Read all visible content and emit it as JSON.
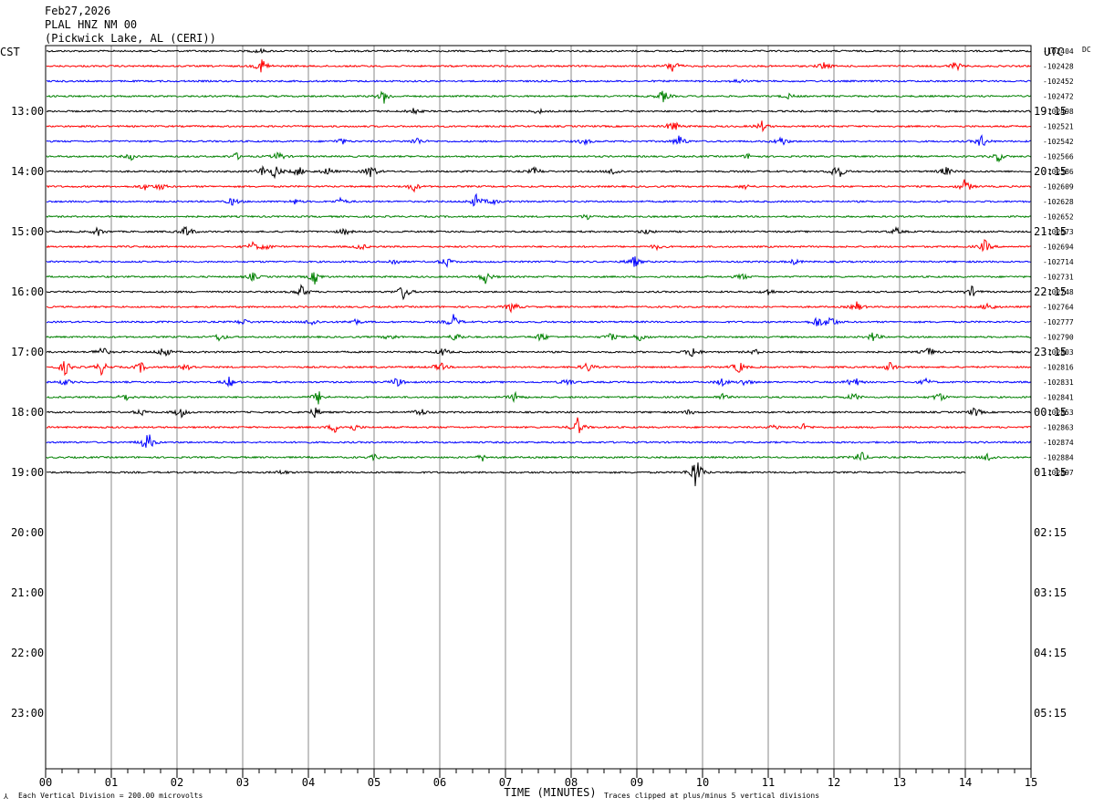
{
  "header": {
    "date": "Feb27,2026",
    "station": "PLAL HNZ NM 00",
    "location": "(Pickwick Lake, AL (CERI))"
  },
  "footer": {
    "scale_note": "Each Vertical Division =  200.00 microvolts",
    "clip_note": "Traces clipped at plus/minus 5 vertical divisions"
  },
  "chart_data": {
    "type": "line",
    "title": "",
    "xlabel": "TIME (MINUTES)",
    "x_ticks": [
      "00",
      "01",
      "02",
      "03",
      "04",
      "05",
      "06",
      "07",
      "08",
      "09",
      "10",
      "11",
      "12",
      "13",
      "14",
      "15"
    ],
    "xlim": [
      0,
      15
    ],
    "left_axis_label": "CST",
    "right_axis_label": "UTC",
    "dc_label": "DC",
    "left_hour_labels": [
      "13:00",
      "14:00",
      "15:00",
      "16:00",
      "17:00",
      "18:00",
      "19:00",
      "20:00",
      "21:00",
      "22:00",
      "23:00"
    ],
    "right_hour_labels": [
      "19:15",
      "20:15",
      "21:15",
      "22:15",
      "23:15",
      "00:15",
      "01:15",
      "02:15",
      "03:15",
      "04:15",
      "05:15"
    ],
    "trace_colors": [
      "#000000",
      "#ff0000",
      "#0000ff",
      "#008000"
    ],
    "grid": "vertical lines at each minute",
    "traces": [
      {
        "dc": "-102404",
        "events": [
          [
            3.25,
            3
          ]
        ]
      },
      {
        "dc": "-102428",
        "events": [
          [
            3.3,
            10
          ],
          [
            9.55,
            9
          ],
          [
            11.85,
            5
          ],
          [
            13.85,
            6
          ]
        ]
      },
      {
        "dc": "-102452",
        "events": [
          [
            10.55,
            3
          ]
        ]
      },
      {
        "dc": "-102472",
        "events": [
          [
            5.15,
            8
          ],
          [
            9.4,
            7
          ],
          [
            11.3,
            3
          ]
        ]
      },
      {
        "dc": "-102498",
        "events": [
          [
            5.6,
            4
          ],
          [
            7.5,
            3
          ]
        ]
      },
      {
        "dc": "-102521",
        "events": [
          [
            9.55,
            8
          ],
          [
            10.9,
            6
          ]
        ]
      },
      {
        "dc": "-102542",
        "events": [
          [
            4.5,
            4
          ],
          [
            5.65,
            5
          ],
          [
            8.2,
            4
          ],
          [
            9.65,
            8
          ],
          [
            11.2,
            6
          ],
          [
            14.25,
            8
          ]
        ]
      },
      {
        "dc": "-102566",
        "events": [
          [
            1.3,
            4
          ],
          [
            2.9,
            4
          ],
          [
            3.55,
            6
          ],
          [
            10.7,
            3
          ],
          [
            14.5,
            6
          ]
        ]
      },
      {
        "dc": "-102586",
        "events": [
          [
            3.3,
            6
          ],
          [
            3.5,
            8
          ],
          [
            3.85,
            6
          ],
          [
            4.3,
            5
          ],
          [
            4.95,
            9
          ],
          [
            7.45,
            5
          ],
          [
            8.65,
            5
          ],
          [
            12.05,
            12
          ],
          [
            13.7,
            6
          ]
        ]
      },
      {
        "dc": "-102609",
        "events": [
          [
            1.5,
            4
          ],
          [
            1.75,
            4
          ],
          [
            5.6,
            6
          ],
          [
            10.65,
            3
          ],
          [
            14.0,
            9
          ]
        ]
      },
      {
        "dc": "-102628",
        "events": [
          [
            2.85,
            5
          ],
          [
            3.8,
            3
          ],
          [
            4.5,
            4
          ],
          [
            6.55,
            8
          ],
          [
            6.8,
            4
          ]
        ]
      },
      {
        "dc": "-102652",
        "events": [
          [
            8.25,
            4
          ]
        ]
      },
      {
        "dc": "-102673",
        "events": [
          [
            0.8,
            5
          ],
          [
            2.15,
            8
          ],
          [
            4.55,
            4
          ],
          [
            9.15,
            3
          ],
          [
            12.95,
            4
          ]
        ]
      },
      {
        "dc": "-102694",
        "events": [
          [
            3.15,
            5
          ],
          [
            3.35,
            4
          ],
          [
            4.8,
            4
          ],
          [
            9.3,
            3
          ],
          [
            14.3,
            8
          ]
        ]
      },
      {
        "dc": "-102714",
        "events": [
          [
            5.3,
            4
          ],
          [
            6.1,
            6
          ],
          [
            8.95,
            8
          ],
          [
            11.4,
            3
          ]
        ]
      },
      {
        "dc": "-102731",
        "events": [
          [
            3.15,
            5
          ],
          [
            4.1,
            8
          ],
          [
            6.7,
            8
          ],
          [
            10.6,
            4
          ]
        ]
      },
      {
        "dc": "-102748",
        "events": [
          [
            3.9,
            8
          ],
          [
            5.45,
            10
          ],
          [
            11.0,
            4
          ],
          [
            14.1,
            6
          ]
        ]
      },
      {
        "dc": "-102764",
        "events": [
          [
            7.1,
            7
          ],
          [
            12.35,
            6
          ],
          [
            14.35,
            6
          ]
        ]
      },
      {
        "dc": "-102777",
        "events": [
          [
            3.0,
            4
          ],
          [
            4.05,
            5
          ],
          [
            4.7,
            4
          ],
          [
            6.2,
            9
          ],
          [
            11.75,
            7
          ],
          [
            11.95,
            8
          ]
        ]
      },
      {
        "dc": "-102790",
        "events": [
          [
            2.65,
            5
          ],
          [
            5.25,
            4
          ],
          [
            6.25,
            6
          ],
          [
            7.55,
            6
          ],
          [
            8.6,
            5
          ],
          [
            9.05,
            6
          ],
          [
            12.6,
            6
          ]
        ]
      },
      {
        "dc": "-102803",
        "events": [
          [
            0.85,
            8
          ],
          [
            1.8,
            8
          ],
          [
            6.05,
            5
          ],
          [
            9.85,
            8
          ],
          [
            10.8,
            3
          ],
          [
            13.45,
            6
          ]
        ]
      },
      {
        "dc": "-102816",
        "events": [
          [
            0.3,
            9
          ],
          [
            0.85,
            8
          ],
          [
            1.45,
            6
          ],
          [
            2.15,
            6
          ],
          [
            6.0,
            6
          ],
          [
            8.25,
            6
          ],
          [
            10.55,
            8
          ],
          [
            12.85,
            6
          ]
        ]
      },
      {
        "dc": "-102831",
        "events": [
          [
            0.3,
            4
          ],
          [
            2.8,
            6
          ],
          [
            5.35,
            6
          ],
          [
            7.95,
            5
          ],
          [
            10.3,
            5
          ],
          [
            10.65,
            5
          ],
          [
            12.3,
            8
          ],
          [
            13.4,
            4
          ]
        ]
      },
      {
        "dc": "-102841",
        "events": [
          [
            1.2,
            5
          ],
          [
            4.15,
            8
          ],
          [
            7.15,
            6
          ],
          [
            10.3,
            4
          ],
          [
            12.3,
            5
          ],
          [
            13.6,
            6
          ]
        ]
      },
      {
        "dc": "-102853",
        "events": [
          [
            1.45,
            4
          ],
          [
            2.05,
            7
          ],
          [
            4.1,
            6
          ],
          [
            5.7,
            6
          ],
          [
            9.8,
            3
          ],
          [
            14.15,
            6
          ]
        ]
      },
      {
        "dc": "-102863",
        "events": [
          [
            4.4,
            6
          ],
          [
            4.7,
            4
          ],
          [
            8.1,
            11
          ],
          [
            11.1,
            3
          ],
          [
            11.55,
            4
          ]
        ]
      },
      {
        "dc": "-102874",
        "events": [
          [
            1.55,
            14
          ]
        ]
      },
      {
        "dc": "-102884",
        "events": [
          [
            5.0,
            3
          ],
          [
            6.65,
            4
          ],
          [
            12.4,
            8
          ],
          [
            14.35,
            6
          ]
        ]
      },
      {
        "dc": "-102897",
        "events": [
          [
            3.6,
            3
          ],
          [
            9.9,
            22
          ]
        ],
        "end_minute": 14.0
      }
    ]
  }
}
